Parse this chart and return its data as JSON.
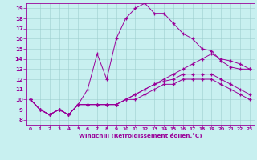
{
  "xlabel": "Windchill (Refroidissement éolien,°C)",
  "background_color": "#c8f0f0",
  "line_color": "#990099",
  "xlim": [
    -0.5,
    23.5
  ],
  "ylim": [
    7.5,
    19.5
  ],
  "xticks": [
    0,
    1,
    2,
    3,
    4,
    5,
    6,
    7,
    8,
    9,
    10,
    11,
    12,
    13,
    14,
    15,
    16,
    17,
    18,
    19,
    20,
    21,
    22,
    23
  ],
  "yticks": [
    8,
    9,
    10,
    11,
    12,
    13,
    14,
    15,
    16,
    17,
    18,
    19
  ],
  "curve_main_x": [
    0,
    1,
    2,
    3,
    4,
    5,
    6,
    7,
    8,
    9,
    10,
    11,
    12,
    13,
    14,
    15,
    16,
    17,
    18,
    19,
    20,
    21,
    22,
    23
  ],
  "curve_main_y": [
    10,
    9,
    8.5,
    9,
    8.5,
    9.5,
    11,
    14.5,
    12,
    16,
    18,
    19,
    19.5,
    18.5,
    18.5,
    17.5,
    16.5,
    16,
    15,
    14.8,
    13.8,
    13.2,
    13,
    13
  ],
  "curve_top_x": [
    0,
    1,
    2,
    3,
    4,
    5,
    6,
    7,
    8,
    9,
    10,
    11,
    12,
    13,
    14,
    15,
    16,
    17,
    18,
    19,
    20,
    21,
    22,
    23
  ],
  "curve_top_y": [
    10,
    9,
    8.5,
    9,
    8.5,
    9.5,
    9.5,
    9.5,
    9.5,
    9.5,
    10,
    10.5,
    11,
    11.5,
    12,
    12.5,
    13,
    13.5,
    14,
    14.5,
    14,
    13.8,
    13.5,
    13
  ],
  "curve_mid_x": [
    0,
    1,
    2,
    3,
    4,
    5,
    6,
    7,
    8,
    9,
    10,
    11,
    12,
    13,
    14,
    15,
    16,
    17,
    18,
    19,
    20,
    21,
    22,
    23
  ],
  "curve_mid_y": [
    10,
    9,
    8.5,
    9,
    8.5,
    9.5,
    9.5,
    9.5,
    9.5,
    9.5,
    10,
    10.5,
    11,
    11.5,
    11.8,
    12,
    12.5,
    12.5,
    12.5,
    12.5,
    12.0,
    11.5,
    11.0,
    10.5
  ],
  "curve_bot_x": [
    0,
    1,
    2,
    3,
    4,
    5,
    6,
    7,
    8,
    9,
    10,
    11,
    12,
    13,
    14,
    15,
    16,
    17,
    18,
    19,
    20,
    21,
    22,
    23
  ],
  "curve_bot_y": [
    10,
    9,
    8.5,
    9,
    8.5,
    9.5,
    9.5,
    9.5,
    9.5,
    9.5,
    10,
    10.0,
    10.5,
    11.0,
    11.5,
    11.5,
    12.0,
    12.0,
    12.0,
    12.0,
    11.5,
    11.0,
    10.5,
    10.0
  ]
}
